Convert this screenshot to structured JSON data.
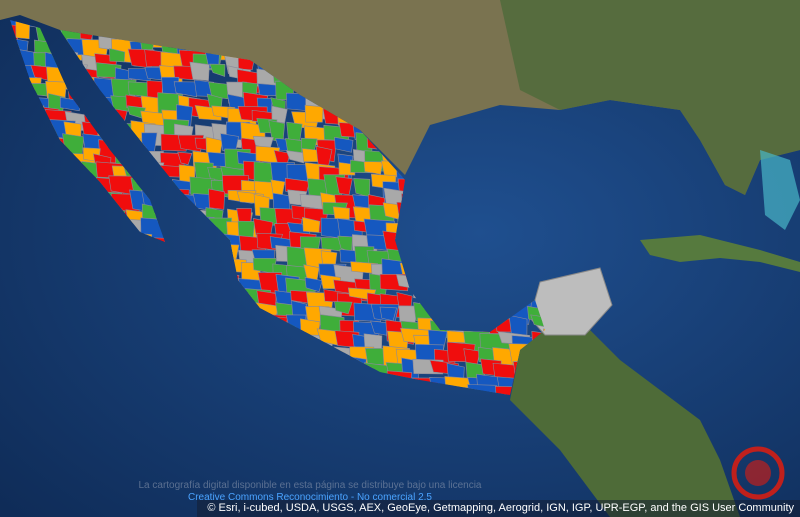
{
  "license": {
    "text": "La cartografía digital disponible en esta página se distribuye bajo una licencia",
    "link": "Creative Commons Reconocimiento - No comercial 2.5"
  },
  "attribution": "© Esri, i-cubed, USDA, USGS, AEX, GeoEye, Getmapping, Aerogrid, IGN, IGP, UPR-EGP, and the GIS User Community"
}
